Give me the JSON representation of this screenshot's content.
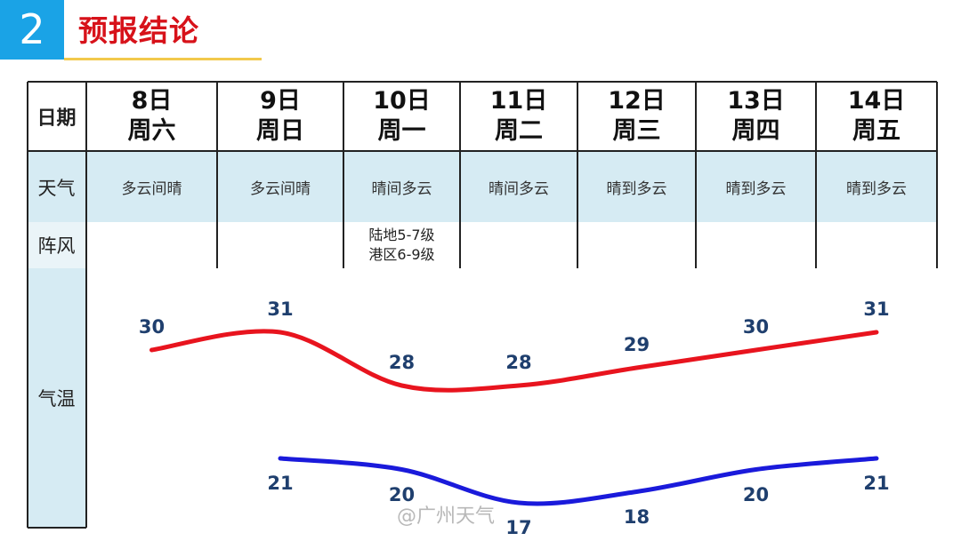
{
  "header": {
    "number": "2",
    "title": "预报结论"
  },
  "table": {
    "date_header": "日期",
    "weather_header": "天气",
    "gust_header": "阵风",
    "temp_header": "气温",
    "days": [
      {
        "date": "8日",
        "weekday": "周六",
        "weather": "多云间晴",
        "gust": [
          "",
          ""
        ]
      },
      {
        "date": "9日",
        "weekday": "周日",
        "weather": "多云间晴",
        "gust": [
          "",
          ""
        ]
      },
      {
        "date": "10日",
        "weekday": "周一",
        "weather": "晴间多云",
        "gust": [
          "陆地5-7级",
          "港区6-9级"
        ]
      },
      {
        "date": "11日",
        "weekday": "周二",
        "weather": "晴间多云",
        "gust": [
          "",
          ""
        ]
      },
      {
        "date": "12日",
        "weekday": "周三",
        "weather": "晴到多云",
        "gust": [
          "",
          ""
        ]
      },
      {
        "date": "13日",
        "weekday": "周四",
        "weather": "晴到多云",
        "gust": [
          "",
          ""
        ]
      },
      {
        "date": "14日",
        "weekday": "周五",
        "weather": "晴到多云",
        "gust": [
          "",
          ""
        ]
      }
    ]
  },
  "chart_data": {
    "type": "line",
    "categories": [
      "8日",
      "9日",
      "10日",
      "11日",
      "12日",
      "13日",
      "14日"
    ],
    "series": [
      {
        "values": [
          30,
          31,
          28,
          28,
          29,
          30,
          31
        ],
        "color": "#e8141e"
      },
      {
        "values": [
          null,
          21,
          20,
          17,
          18,
          20,
          21
        ],
        "color": "#1a1adb"
      }
    ],
    "grid": false,
    "legend": "none"
  },
  "watermark": "@广州天气",
  "colors": {
    "accent_blue": "#1aa3e6",
    "title_red": "#d7121a",
    "row_band": "#d6ebf3",
    "border": "#222222",
    "high_line": "#e8141e",
    "low_line": "#1a1adb",
    "temp_text": "#1f3f6e"
  }
}
